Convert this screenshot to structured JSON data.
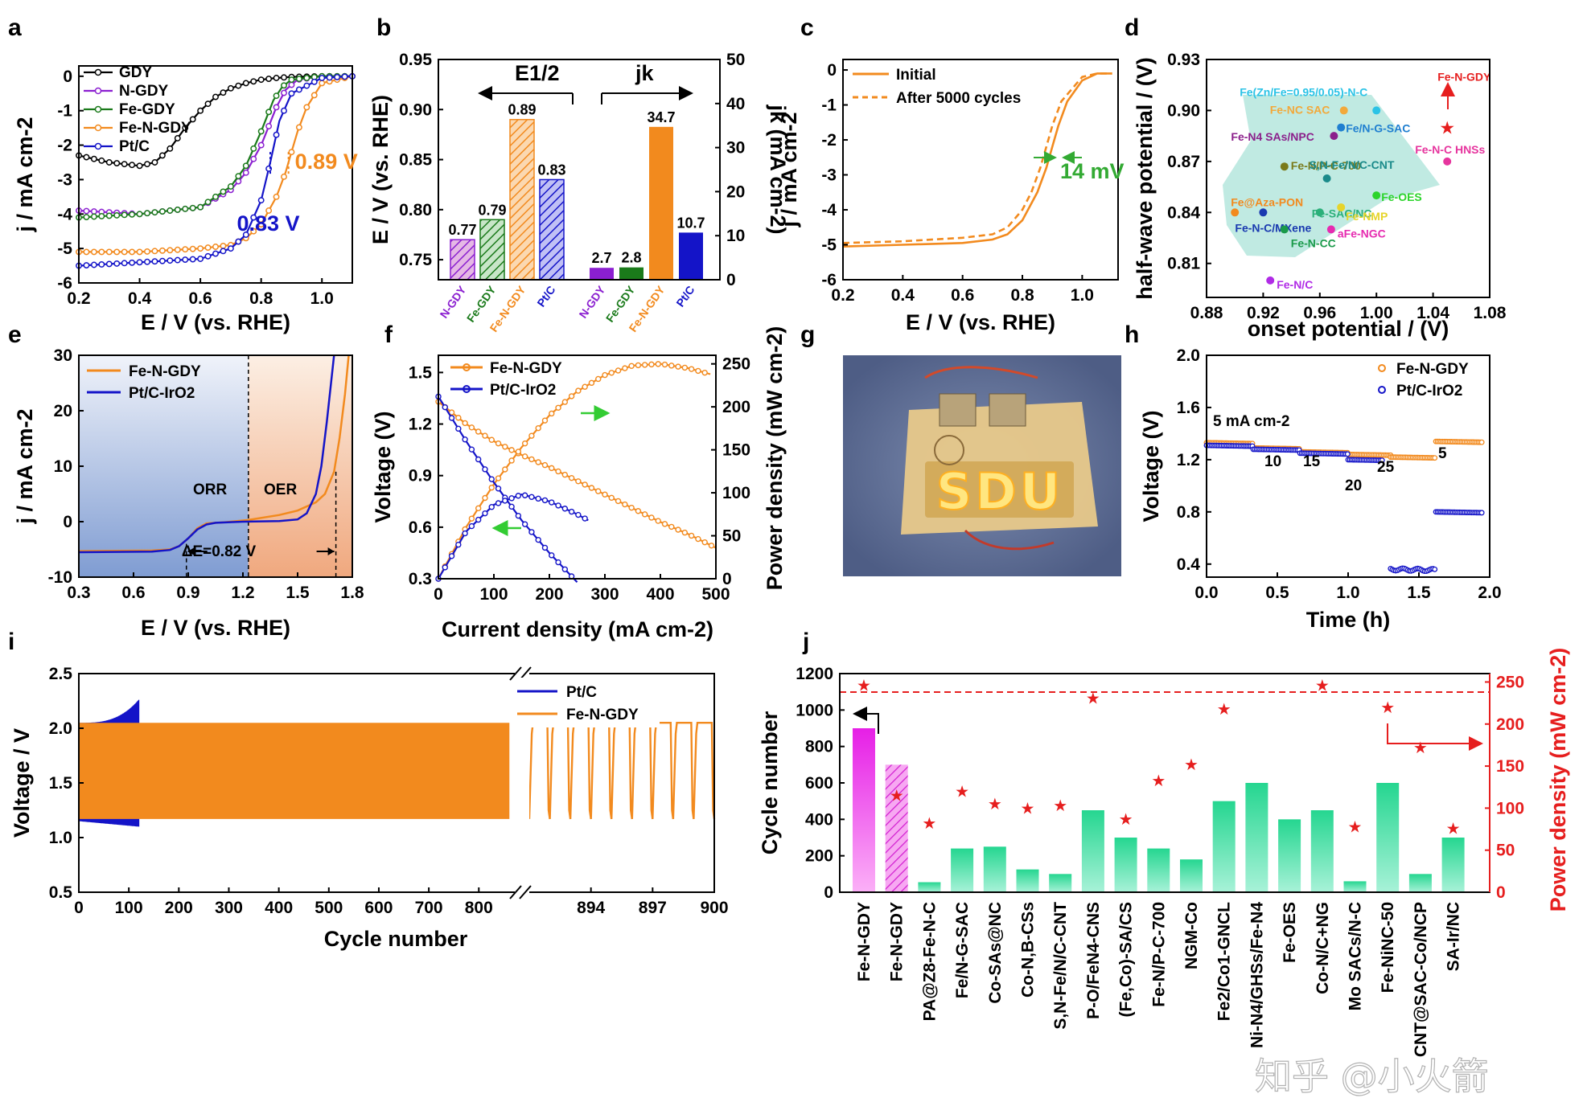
{
  "watermark": "知乎 @小火箭",
  "panels": {
    "a": {
      "label": "a"
    },
    "b": {
      "label": "b"
    },
    "c": {
      "label": "c"
    },
    "d": {
      "label": "d"
    },
    "e": {
      "label": "e"
    },
    "f": {
      "label": "f"
    },
    "g": {
      "label": "g"
    },
    "h": {
      "label": "h"
    },
    "i": {
      "label": "i"
    },
    "j": {
      "label": "j"
    }
  },
  "photo": {
    "sign_text": "SDU"
  },
  "chart_data": [
    {
      "id": "a",
      "type": "line",
      "xlabel": "E / V (vs. RHE)",
      "ylabel": "j / mA cm-2",
      "xlim": [
        0.2,
        1.1
      ],
      "ylim": [
        -6,
        0.3
      ],
      "xticks": [
        "0.2",
        "0.4",
        "0.6",
        "0.8",
        "1.0"
      ],
      "yticks": [
        "0",
        "-1",
        "-2",
        "-3",
        "-4",
        "-5",
        "-6"
      ],
      "series": [
        {
          "name": "GDY",
          "color": "#000000",
          "x": [
            0.2,
            0.3,
            0.4,
            0.45,
            0.5,
            0.55,
            0.6,
            0.65,
            0.7,
            0.75,
            0.8,
            0.85,
            0.9,
            1.0,
            1.1
          ],
          "y": [
            -2.3,
            -2.5,
            -2.6,
            -2.5,
            -2.1,
            -1.5,
            -1.0,
            -0.6,
            -0.35,
            -0.2,
            -0.1,
            -0.05,
            -0.02,
            0,
            0
          ]
        },
        {
          "name": "N-GDY",
          "color": "#8B1FD0",
          "x": [
            0.2,
            0.4,
            0.6,
            0.7,
            0.75,
            0.8,
            0.85,
            0.88,
            0.92,
            1.0,
            1.1
          ],
          "y": [
            -3.9,
            -4.0,
            -3.8,
            -3.3,
            -2.8,
            -2.0,
            -0.9,
            -0.4,
            -0.1,
            0,
            0
          ]
        },
        {
          "name": "Fe-GDY",
          "color": "#1A7A1A",
          "x": [
            0.2,
            0.4,
            0.6,
            0.7,
            0.75,
            0.8,
            0.84,
            0.87,
            0.9,
            1.0,
            1.1
          ],
          "y": [
            -4.1,
            -4.0,
            -3.8,
            -3.2,
            -2.6,
            -1.6,
            -0.7,
            -0.3,
            -0.1,
            0,
            0
          ]
        },
        {
          "name": "Fe-N-GDY",
          "color": "#F28A1E",
          "x": [
            0.2,
            0.4,
            0.6,
            0.7,
            0.75,
            0.8,
            0.85,
            0.88,
            0.9,
            0.92,
            0.95,
            1.0,
            1.1
          ],
          "y": [
            -5.1,
            -5.1,
            -5.0,
            -4.9,
            -4.7,
            -4.3,
            -3.5,
            -2.8,
            -2.2,
            -1.6,
            -0.9,
            -0.2,
            0
          ]
        },
        {
          "name": "Pt/C",
          "color": "#1414C8",
          "x": [
            0.2,
            0.4,
            0.6,
            0.7,
            0.75,
            0.8,
            0.83,
            0.86,
            0.9,
            1.0,
            1.1
          ],
          "y": [
            -5.5,
            -5.4,
            -5.3,
            -5.0,
            -4.6,
            -3.6,
            -2.5,
            -1.3,
            -0.5,
            -0.05,
            0
          ]
        }
      ],
      "annotations": [
        {
          "text": "0.89 V",
          "color": "#F28A1E",
          "x": 0.89,
          "y": -2.5
        },
        {
          "text": "0.83 V",
          "color": "#1414C8",
          "x": 0.83,
          "y": -4.3
        }
      ]
    },
    {
      "id": "b",
      "type": "bar",
      "ylabel": "E / V (vs. RHE)",
      "y2label": "jk (mA cm-2)",
      "ylim": [
        0.73,
        0.95
      ],
      "y2lim": [
        0,
        50
      ],
      "yticks": [
        "0.75",
        "0.80",
        "0.85",
        "0.90",
        "0.95"
      ],
      "y2ticks": [
        "0",
        "10",
        "20",
        "30",
        "40",
        "50"
      ],
      "groups": [
        {
          "title": "E1/2",
          "categories": [
            "N-GDY",
            "Fe-GDY",
            "Fe-N-GDY",
            "Pt/C"
          ],
          "values": [
            0.77,
            0.79,
            0.89,
            0.83
          ],
          "labels": [
            "0.77",
            "0.79",
            "0.89",
            "0.83"
          ]
        },
        {
          "title": "jk",
          "categories": [
            "N-GDY",
            "Fe-GDY",
            "Fe-N-GDY",
            "Pt/C"
          ],
          "values": [
            2.7,
            2.8,
            34.7,
            10.7
          ],
          "labels": [
            "2.7",
            "2.8",
            "34.7",
            "10.7"
          ]
        }
      ],
      "colors": [
        "#8B1FD0",
        "#1A7A1A",
        "#F28A1E",
        "#1414C8"
      ]
    },
    {
      "id": "c",
      "type": "line",
      "xlabel": "E / V (vs. RHE)",
      "ylabel": "j / mA cm-2",
      "xlim": [
        0.2,
        1.12
      ],
      "ylim": [
        -6,
        0.3
      ],
      "xticks": [
        "0.2",
        "0.4",
        "0.6",
        "0.8",
        "1.0"
      ],
      "yticks": [
        "0",
        "-1",
        "-2",
        "-3",
        "-4",
        "-5",
        "-6"
      ],
      "series": [
        {
          "name": "Initial",
          "style": "solid",
          "color": "#F28A1E",
          "x": [
            0.2,
            0.4,
            0.6,
            0.7,
            0.75,
            0.8,
            0.85,
            0.88,
            0.9,
            0.92,
            0.95,
            1.0,
            1.05,
            1.1
          ],
          "y": [
            -5.05,
            -5.0,
            -4.95,
            -4.85,
            -4.7,
            -4.3,
            -3.5,
            -2.8,
            -2.2,
            -1.6,
            -0.9,
            -0.3,
            -0.1,
            -0.1
          ]
        },
        {
          "name": "After 5000 cycles",
          "style": "dashed",
          "color": "#F28A1E",
          "x": [
            0.2,
            0.4,
            0.6,
            0.7,
            0.75,
            0.8,
            0.83,
            0.86,
            0.88,
            0.9,
            0.93,
            1.0,
            1.05,
            1.1
          ],
          "y": [
            -4.95,
            -4.9,
            -4.8,
            -4.7,
            -4.5,
            -4.0,
            -3.5,
            -2.8,
            -2.2,
            -1.6,
            -0.9,
            -0.2,
            -0.1,
            -0.1
          ]
        }
      ],
      "annotation": {
        "text": "14 mV"
      }
    },
    {
      "id": "d",
      "type": "scatter",
      "xlabel": "onset potential / (V)",
      "ylabel": "half-wave potential / (V)",
      "xlim": [
        0.88,
        1.08
      ],
      "ylim": [
        0.79,
        0.93
      ],
      "xticks": [
        "0.88",
        "0.92",
        "0.96",
        "1.00",
        "1.04",
        "1.08"
      ],
      "yticks": [
        "0.81",
        "0.84",
        "0.87",
        "0.90",
        "0.93"
      ],
      "points": [
        {
          "label": "Fe(Zn/Fe=0.95/0.05)-N-C",
          "x": 1.0,
          "y": 0.9,
          "color": "#2BC3E6"
        },
        {
          "label": "Fe-NC SAC",
          "x": 0.977,
          "y": 0.9,
          "color": "#F2A93B"
        },
        {
          "label": "Fe/N-G-SAC",
          "x": 0.975,
          "y": 0.89,
          "color": "#1F7FD0"
        },
        {
          "label": "Fe-N4 SAs/NPC",
          "x": 0.97,
          "y": 0.885,
          "color": "#8B1F8B"
        },
        {
          "label": "Fe-N/P-C-700",
          "x": 0.935,
          "y": 0.867,
          "color": "#7A7A1A"
        },
        {
          "label": "S,N-Fe/N/C-CNT",
          "x": 0.965,
          "y": 0.86,
          "color": "#1A8A8A"
        },
        {
          "label": "Fe-SAC/NC",
          "x": 0.96,
          "y": 0.84,
          "color": "#2BB07A"
        },
        {
          "label": "Fe-OES",
          "x": 1.0,
          "y": 0.85,
          "color": "#2BD42B"
        },
        {
          "label": "Fe-NMP",
          "x": 0.975,
          "y": 0.843,
          "color": "#E6D42B"
        },
        {
          "label": "aFe-NGC",
          "x": 0.968,
          "y": 0.83,
          "color": "#E62BB0"
        },
        {
          "label": "Fe@Aza-PON",
          "x": 0.9,
          "y": 0.84,
          "color": "#F28A1E"
        },
        {
          "label": "Fe-N-C/MXene",
          "x": 0.92,
          "y": 0.84,
          "color": "#1A3AB0"
        },
        {
          "label": "Fe-N-CC",
          "x": 0.935,
          "y": 0.83,
          "color": "#1A9A4A"
        },
        {
          "label": "Fe-N/C",
          "x": 0.925,
          "y": 0.8,
          "color": "#B02BE6"
        },
        {
          "label": "Fe-N-C HNSs",
          "x": 1.05,
          "y": 0.87,
          "color": "#E6359E"
        },
        {
          "label": "Fe-N-GDY",
          "x": 1.05,
          "y": 0.89,
          "color": "#E61E1E",
          "marker": "star"
        }
      ]
    },
    {
      "id": "e",
      "type": "line",
      "xlabel": "E / V (vs. RHE)",
      "ylabel": "j / mA cm-2",
      "xlim": [
        0.3,
        1.8
      ],
      "ylim": [
        -10,
        30
      ],
      "xticks": [
        "0.3",
        "0.6",
        "0.9",
        "1.2",
        "1.5",
        "1.8"
      ],
      "yticks": [
        "-10",
        "0",
        "10",
        "20",
        "30"
      ],
      "regions": [
        {
          "label": "ORR",
          "from": 0.3,
          "to": 1.23
        },
        {
          "label": "OER",
          "from": 1.23,
          "to": 1.8
        }
      ],
      "series": [
        {
          "name": "Fe-N-GDY",
          "color": "#F28A1E",
          "x": [
            0.3,
            0.7,
            0.8,
            0.85,
            0.9,
            0.95,
            1.0,
            1.1,
            1.23,
            1.4,
            1.5,
            1.6,
            1.65,
            1.7,
            1.73,
            1.76,
            1.78
          ],
          "y": [
            -5.3,
            -5.2,
            -5.0,
            -4.4,
            -3.0,
            -1.2,
            -0.3,
            -0.1,
            0.3,
            1.2,
            2.0,
            3.5,
            5.0,
            9.0,
            15.0,
            23.0,
            30.0
          ]
        },
        {
          "name": "Pt/C-IrO2",
          "color": "#1414C8",
          "x": [
            0.3,
            0.7,
            0.8,
            0.85,
            0.9,
            0.95,
            1.0,
            1.05,
            1.2,
            1.4,
            1.5,
            1.55,
            1.6,
            1.63,
            1.66,
            1.7
          ],
          "y": [
            -5.5,
            -5.4,
            -5.1,
            -4.4,
            -3.0,
            -1.4,
            -0.5,
            -0.2,
            0.0,
            0.1,
            0.4,
            1.5,
            5.0,
            10.0,
            18.0,
            30.0
          ]
        }
      ],
      "annotation": {
        "text": "ΔE=0.82 V",
        "from": 0.89,
        "to": 1.71
      }
    },
    {
      "id": "f",
      "type": "line",
      "xlabel": "Current density (mA cm-2)",
      "ylabel": "Voltage (V)",
      "y2label": "Power density (mW cm-2)",
      "xlim": [
        0,
        500
      ],
      "ylim": [
        0.3,
        1.6
      ],
      "y2lim": [
        0,
        260
      ],
      "xticks": [
        "0",
        "100",
        "200",
        "300",
        "400",
        "500"
      ],
      "yticks": [
        "0.3",
        "0.6",
        "0.9",
        "1.2",
        "1.5"
      ],
      "y2ticks": [
        "0",
        "50",
        "100",
        "150",
        "200",
        "250"
      ],
      "series": [
        {
          "name": "Fe-N-GDY",
          "color": "#F28A1E",
          "voltage_x": [
            0,
            50,
            100,
            150,
            200,
            250,
            300,
            350,
            400,
            450,
            500
          ],
          "voltage_y": [
            1.33,
            1.2,
            1.1,
            1.02,
            0.95,
            0.87,
            0.79,
            0.71,
            0.63,
            0.56,
            0.48
          ],
          "power_x": [
            0,
            50,
            100,
            150,
            200,
            250,
            300,
            350,
            400,
            450,
            490
          ],
          "power_y": [
            0,
            60,
            110,
            153,
            190,
            218,
            237,
            248,
            250,
            245,
            238
          ]
        },
        {
          "name": "Pt/C-IrO2",
          "color": "#1414C8",
          "voltage_x": [
            0,
            50,
            100,
            150,
            200,
            250
          ],
          "voltage_y": [
            1.36,
            1.1,
            0.86,
            0.64,
            0.45,
            0.28
          ],
          "power_x": [
            0,
            50,
            100,
            150,
            200,
            250,
            270
          ],
          "power_y": [
            0,
            55,
            86,
            98,
            90,
            75,
            68
          ]
        }
      ]
    },
    {
      "id": "h",
      "type": "scatter",
      "xlabel": "Time (h)",
      "ylabel": "Voltage (V)",
      "xlim": [
        0,
        2.0
      ],
      "ylim": [
        0.3,
        2.0
      ],
      "xticks": [
        "0.0",
        "0.5",
        "1.0",
        "1.5",
        "2.0"
      ],
      "yticks": [
        "0.4",
        "0.8",
        "1.2",
        "1.6",
        "2.0"
      ],
      "series": [
        {
          "name": "Fe-N-GDY",
          "color": "#F28A1E",
          "segments": [
            [
              0,
              0.33,
              1.33
            ],
            [
              0.33,
              0.66,
              1.29
            ],
            [
              0.66,
              1.0,
              1.26
            ],
            [
              1.0,
              1.3,
              1.24
            ],
            [
              1.3,
              1.62,
              1.22
            ],
            [
              1.62,
              1.95,
              1.34
            ]
          ]
        },
        {
          "name": "Pt/C-IrO2",
          "color": "#1414C8",
          "segments": [
            [
              0,
              0.33,
              1.31
            ],
            [
              0.33,
              0.66,
              1.28
            ],
            [
              0.66,
              1.0,
              1.25
            ],
            [
              1.0,
              1.25,
              1.2
            ],
            [
              1.3,
              1.62,
              0.36
            ],
            [
              1.62,
              1.95,
              0.8
            ]
          ]
        }
      ],
      "annotations": [
        "5 mA cm-2",
        "10",
        "15",
        "20",
        "25",
        "5"
      ]
    },
    {
      "id": "i",
      "type": "line",
      "xlabel": "Cycle number",
      "ylabel": "Voltage / V",
      "xlim": [
        0,
        880
      ],
      "ylim": [
        0.5,
        2.5
      ],
      "xticks": [
        "0",
        "100",
        "200",
        "300",
        "400",
        "500",
        "600",
        "700",
        "800"
      ],
      "x2ticks": [
        "894",
        "897",
        "900"
      ],
      "yticks": [
        "0.5",
        "1.0",
        "1.5",
        "2.0",
        "2.5"
      ],
      "series": [
        {
          "name": "Pt/C",
          "color": "#1414C8",
          "cycles": 120,
          "charge_v": [
            2.05,
            2.26
          ],
          "discharge_v": [
            1.15,
            1.1
          ]
        },
        {
          "name": "Fe-N-GDY",
          "color": "#F28A1E",
          "cycles": 900,
          "charge_v": [
            2.05,
            2.05
          ],
          "discharge_v": [
            1.17,
            1.17
          ]
        }
      ]
    },
    {
      "id": "j",
      "type": "bar",
      "ylabel": "Cycle number",
      "y2label": "Power density (mW cm-2)",
      "ylim": [
        0,
        1200
      ],
      "y2lim": [
        0,
        260
      ],
      "yticks": [
        "0",
        "200",
        "400",
        "600",
        "800",
        "1000",
        "1200"
      ],
      "y2ticks": [
        "0",
        "50",
        "100",
        "150",
        "200",
        "250"
      ],
      "categories": [
        "Fe-N-GDY",
        "Fe-N-GDY",
        "PA@Z8-Fe-N-C",
        "Fe/N-G-SAC",
        "Co-SAs@NC",
        "Co-N,B-CSs",
        "S,N-Fe/N/C-CNT",
        "P-O/FeN4-CNS",
        "(Fe,Co)-SA/CS",
        "Fe-N/P-C-700",
        "NGM-Co",
        "Fe2/Co1-GNCL",
        "Ni-N4/GHSs/Fe-N4",
        "Fe-OES",
        "Co-N/C+NG",
        "Mo SACs/N-C",
        "Fe-NiNC-50",
        "CNT@SAC-Co/NCP",
        "SA-Ir/NC"
      ],
      "cycle_values": [
        900,
        700,
        55,
        240,
        250,
        125,
        100,
        450,
        300,
        240,
        180,
        500,
        600,
        400,
        450,
        60,
        600,
        100,
        300
      ],
      "power_values": [
        246,
        115,
        82,
        120,
        105,
        100,
        103,
        231,
        87,
        133,
        152,
        218,
        0,
        0,
        246,
        78,
        220,
        172,
        76
      ],
      "reference_power": 238
    }
  ]
}
